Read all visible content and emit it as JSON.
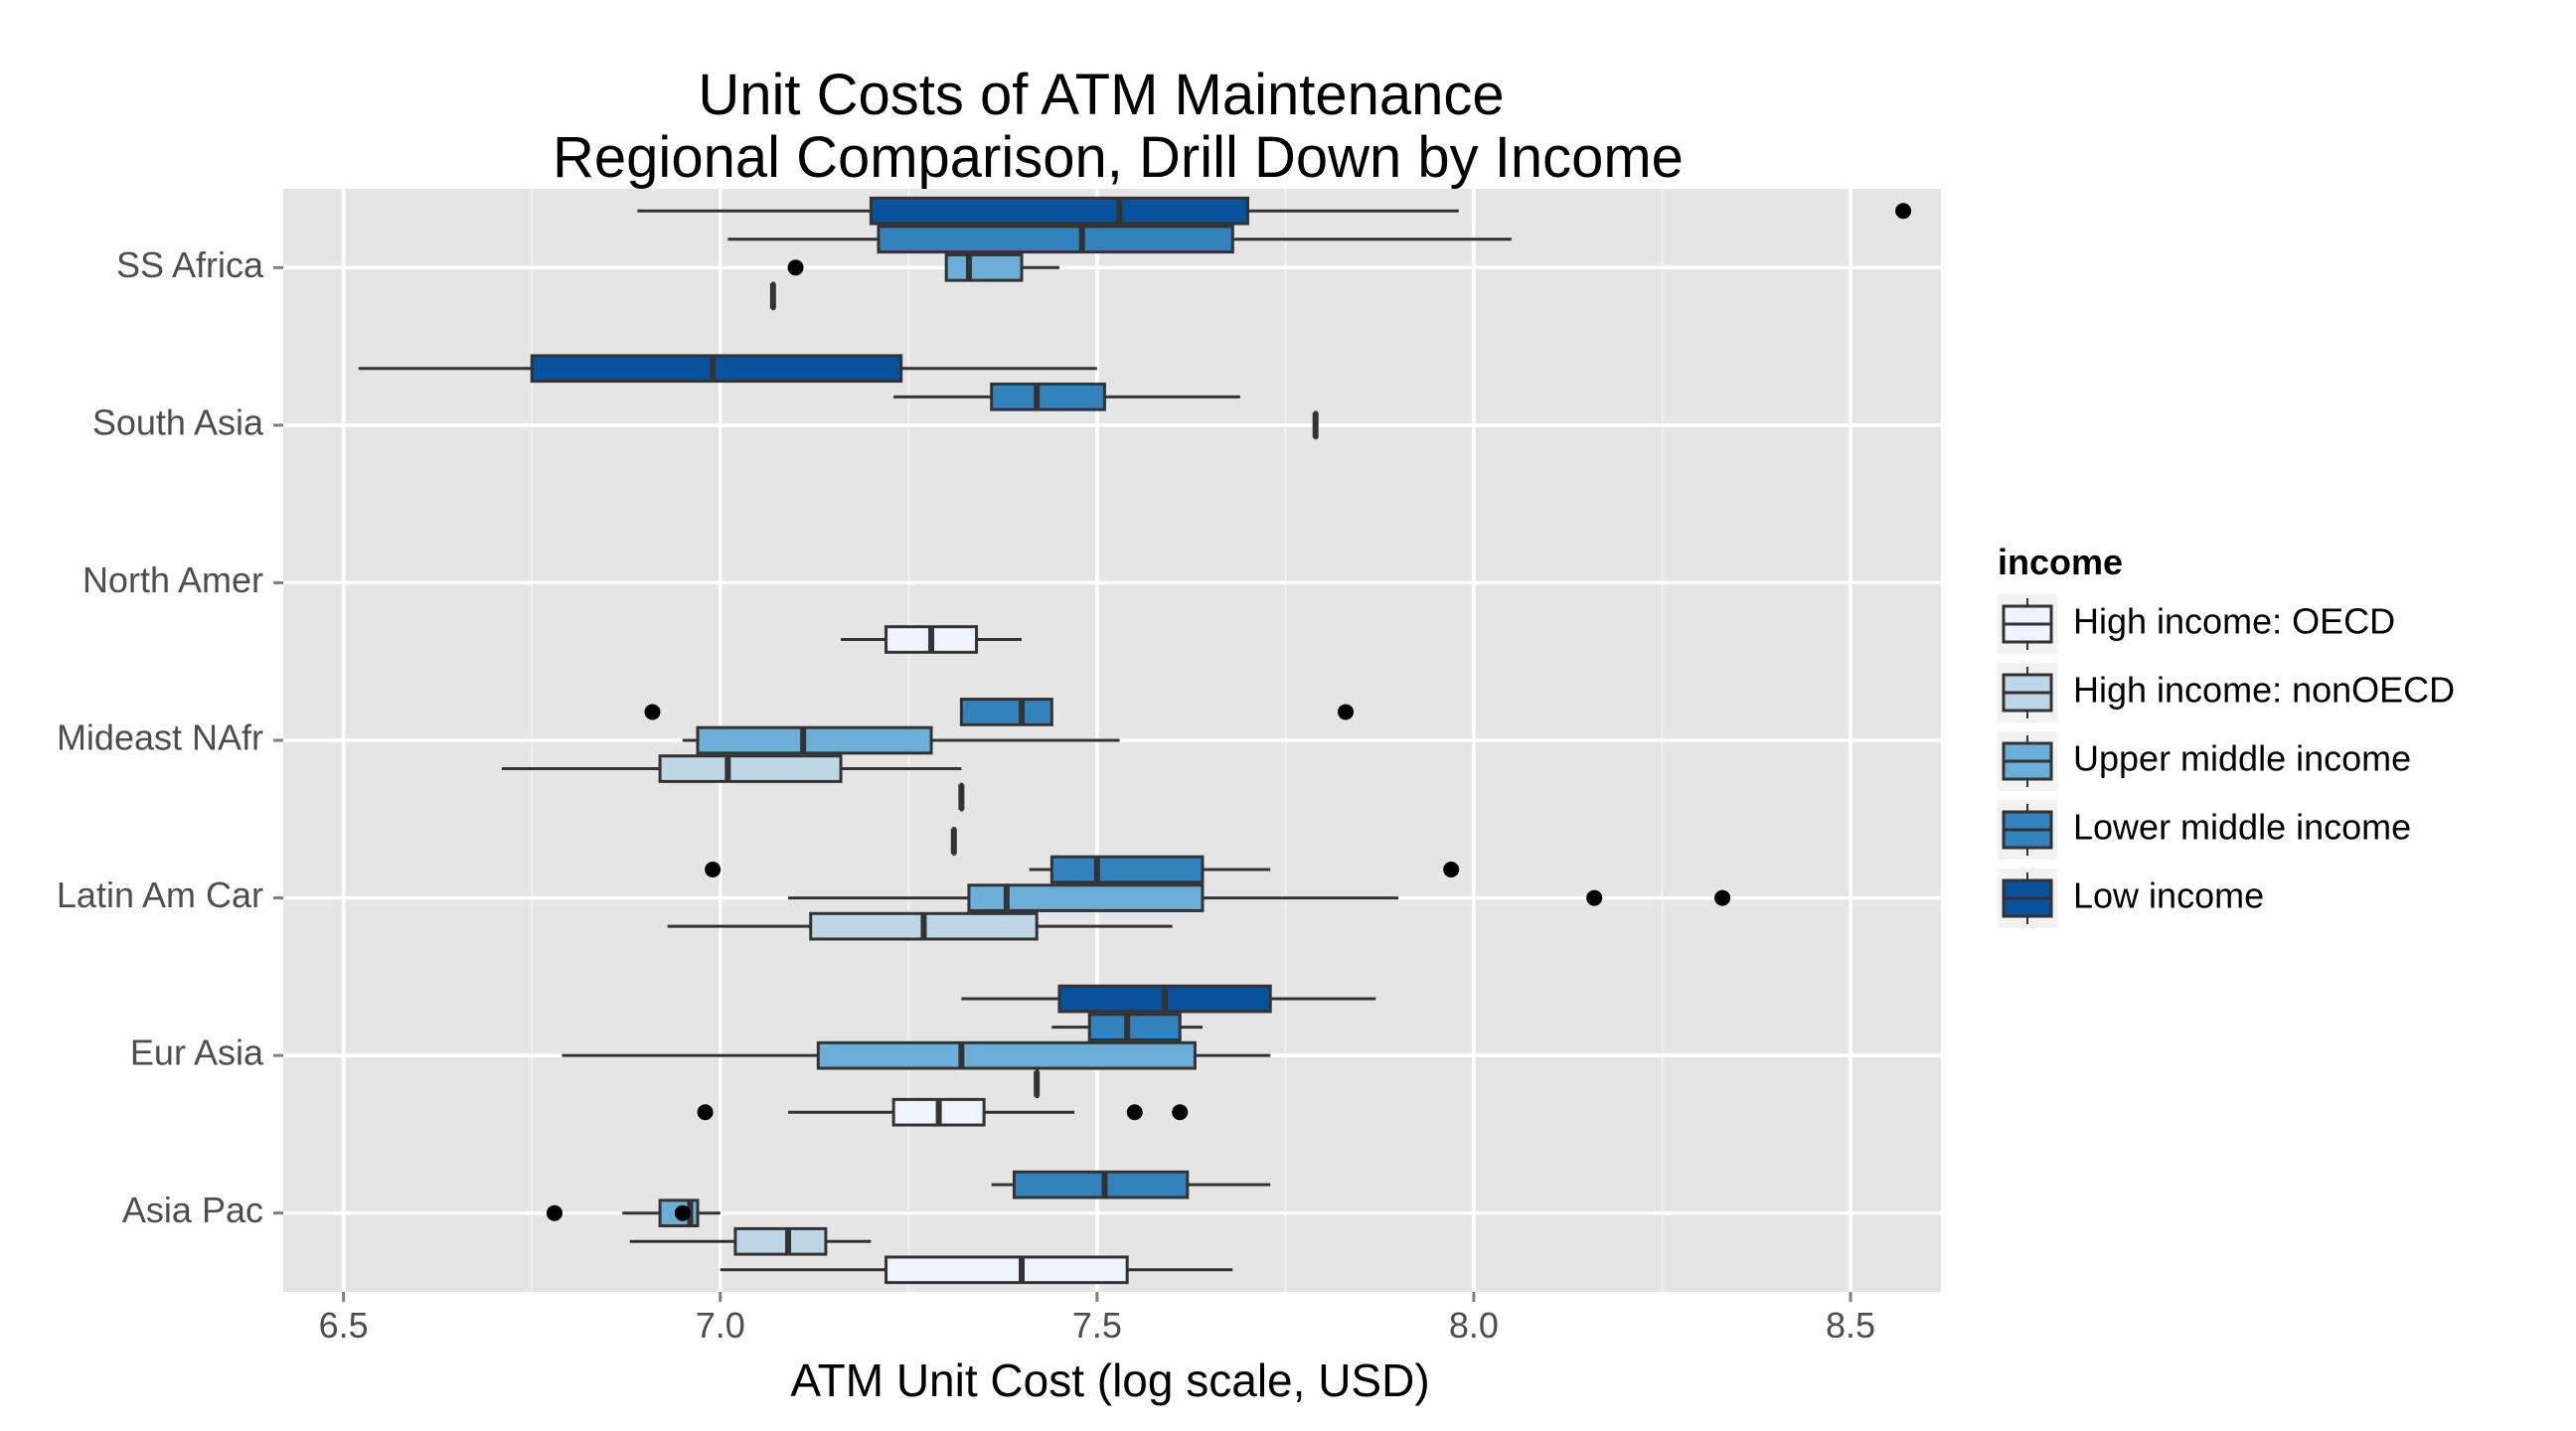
{
  "chart_data": {
    "type": "boxplot",
    "title": [
      "Unit Costs of ATM Maintenance",
      "Regional Comparison, Drill Down by Income"
    ],
    "xlabel": "ATM Unit Cost (log scale, USD)",
    "ylabel": "",
    "xlim": [
      6.42,
      8.62
    ],
    "xticks": [
      "6.5",
      "7.0",
      "7.5",
      "8.0",
      "8.5"
    ],
    "xtick_values": [
      6.5,
      7.0,
      7.5,
      8.0,
      8.5
    ],
    "categories": [
      "SS Africa",
      "South Asia",
      "North Amer",
      "Mideast NAfr",
      "Latin Am Car",
      "Eur Asia",
      "Asia Pac"
    ],
    "grid": true,
    "legend": {
      "title": "income",
      "position": "right",
      "entries": [
        {
          "label": "High income: OECD",
          "color": "#eff3ff"
        },
        {
          "label": "High income: nonOECD",
          "color": "#bdd7e7"
        },
        {
          "label": "Upper middle income",
          "color": "#6baed6"
        },
        {
          "label": "Lower middle income",
          "color": "#3182bd"
        },
        {
          "label": "Low income",
          "color": "#08519c"
        }
      ]
    },
    "series": [
      {
        "region": "SS Africa",
        "income": "Low income",
        "lower_whisker": 6.89,
        "q1": 7.2,
        "median": 7.53,
        "q3": 7.7,
        "upper_whisker": 7.98,
        "outliers": [
          8.57
        ]
      },
      {
        "region": "SS Africa",
        "income": "Lower middle income",
        "lower_whisker": 7.01,
        "q1": 7.21,
        "median": 7.48,
        "q3": 7.68,
        "upper_whisker": 8.05,
        "outliers": []
      },
      {
        "region": "SS Africa",
        "income": "Upper middle income",
        "lower_whisker": 7.3,
        "q1": 7.3,
        "median": 7.33,
        "q3": 7.4,
        "upper_whisker": 7.45,
        "outliers": [
          7.1
        ]
      },
      {
        "region": "SS Africa",
        "income": "High income: nonOECD",
        "lower_whisker": 7.07,
        "q1": 7.07,
        "median": 7.07,
        "q3": 7.07,
        "upper_whisker": 7.07,
        "outliers": []
      },
      {
        "region": "South Asia",
        "income": "Low income",
        "lower_whisker": 6.52,
        "q1": 6.75,
        "median": 6.99,
        "q3": 7.24,
        "upper_whisker": 7.5,
        "outliers": []
      },
      {
        "region": "South Asia",
        "income": "Lower middle income",
        "lower_whisker": 7.23,
        "q1": 7.36,
        "median": 7.42,
        "q3": 7.51,
        "upper_whisker": 7.69,
        "outliers": []
      },
      {
        "region": "South Asia",
        "income": "Upper middle income",
        "lower_whisker": 7.79,
        "q1": 7.79,
        "median": 7.79,
        "q3": 7.79,
        "upper_whisker": 7.79,
        "outliers": []
      },
      {
        "region": "North Amer",
        "income": "High income: OECD",
        "lower_whisker": 7.16,
        "q1": 7.22,
        "median": 7.28,
        "q3": 7.34,
        "upper_whisker": 7.4,
        "outliers": []
      },
      {
        "region": "Mideast NAfr",
        "income": "Lower middle income",
        "lower_whisker": 7.32,
        "q1": 7.32,
        "median": 7.4,
        "q3": 7.44,
        "upper_whisker": 7.44,
        "outliers": [
          6.91,
          7.83
        ]
      },
      {
        "region": "Mideast NAfr",
        "income": "Upper middle income",
        "lower_whisker": 6.95,
        "q1": 6.97,
        "median": 7.11,
        "q3": 7.28,
        "upper_whisker": 7.53,
        "outliers": []
      },
      {
        "region": "Mideast NAfr",
        "income": "High income: nonOECD",
        "lower_whisker": 6.71,
        "q1": 6.92,
        "median": 7.01,
        "q3": 7.16,
        "upper_whisker": 7.32,
        "outliers": []
      },
      {
        "region": "Mideast NAfr",
        "income": "High income: OECD",
        "lower_whisker": 7.32,
        "q1": 7.32,
        "median": 7.32,
        "q3": 7.32,
        "upper_whisker": 7.32,
        "outliers": []
      },
      {
        "region": "Latin Am Car",
        "income": "Low income",
        "lower_whisker": 7.31,
        "q1": 7.31,
        "median": 7.31,
        "q3": 7.31,
        "upper_whisker": 7.31,
        "outliers": []
      },
      {
        "region": "Latin Am Car",
        "income": "Lower middle income",
        "lower_whisker": 7.41,
        "q1": 7.44,
        "median": 7.5,
        "q3": 7.64,
        "upper_whisker": 7.73,
        "outliers": [
          6.99,
          7.97
        ]
      },
      {
        "region": "Latin Am Car",
        "income": "Upper middle income",
        "lower_whisker": 7.09,
        "q1": 7.33,
        "median": 7.38,
        "q3": 7.64,
        "upper_whisker": 7.9,
        "outliers": [
          8.16,
          8.33
        ]
      },
      {
        "region": "Latin Am Car",
        "income": "High income: nonOECD",
        "lower_whisker": 6.93,
        "q1": 7.12,
        "median": 7.27,
        "q3": 7.42,
        "upper_whisker": 7.6,
        "outliers": []
      },
      {
        "region": "Eur Asia",
        "income": "Low income",
        "lower_whisker": 7.32,
        "q1": 7.45,
        "median": 7.59,
        "q3": 7.73,
        "upper_whisker": 7.87,
        "outliers": []
      },
      {
        "region": "Eur Asia",
        "income": "Lower middle income",
        "lower_whisker": 7.44,
        "q1": 7.49,
        "median": 7.54,
        "q3": 7.61,
        "upper_whisker": 7.64,
        "outliers": []
      },
      {
        "region": "Eur Asia",
        "income": "Upper middle income",
        "lower_whisker": 6.79,
        "q1": 7.13,
        "median": 7.32,
        "q3": 7.63,
        "upper_whisker": 7.73,
        "outliers": []
      },
      {
        "region": "Eur Asia",
        "income": "High income: nonOECD",
        "lower_whisker": 7.42,
        "q1": 7.42,
        "median": 7.42,
        "q3": 7.42,
        "upper_whisker": 7.42,
        "outliers": []
      },
      {
        "region": "Eur Asia",
        "income": "High income: OECD",
        "lower_whisker": 7.09,
        "q1": 7.23,
        "median": 7.29,
        "q3": 7.35,
        "upper_whisker": 7.47,
        "outliers": [
          6.98,
          7.55,
          7.61
        ]
      },
      {
        "region": "Asia Pac",
        "income": "Lower middle income",
        "lower_whisker": 7.36,
        "q1": 7.39,
        "median": 7.51,
        "q3": 7.62,
        "upper_whisker": 7.73,
        "outliers": []
      },
      {
        "region": "Asia Pac",
        "income": "Upper middle income",
        "lower_whisker": 6.87,
        "q1": 6.92,
        "median": 6.96,
        "q3": 6.97,
        "upper_whisker": 7.0,
        "outliers": [
          6.78,
          6.95
        ]
      },
      {
        "region": "Asia Pac",
        "income": "High income: nonOECD",
        "lower_whisker": 6.88,
        "q1": 7.02,
        "median": 7.09,
        "q3": 7.14,
        "upper_whisker": 7.2,
        "outliers": []
      },
      {
        "region": "Asia Pac",
        "income": "High income: OECD",
        "lower_whisker": 7.0,
        "q1": 7.22,
        "median": 7.4,
        "q3": 7.54,
        "upper_whisker": 7.68,
        "outliers": []
      }
    ]
  }
}
